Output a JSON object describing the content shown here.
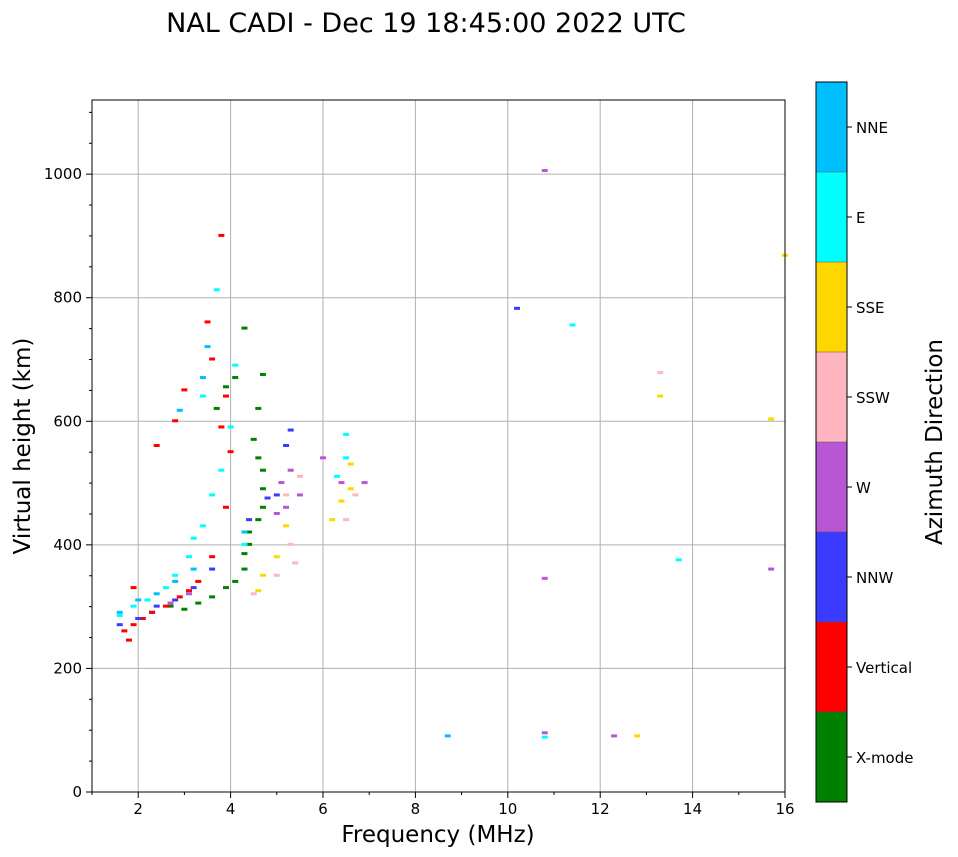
{
  "chart_data": {
    "type": "scatter",
    "title": "NAL CADI - Dec 19 18:45:00 2022 UTC",
    "xlabel": "Frequency (MHz)",
    "ylabel": "Virtual height (km)",
    "xlim": [
      1,
      16
    ],
    "ylim": [
      0,
      1120
    ],
    "xticks": [
      2,
      4,
      6,
      8,
      10,
      12,
      14,
      16
    ],
    "yticks": [
      0,
      200,
      400,
      600,
      800,
      1000
    ],
    "grid": true,
    "colorbar": {
      "label": "Azimuth Direction",
      "placement": "right",
      "categories": [
        {
          "name": "X-mode",
          "color": "#008000"
        },
        {
          "name": "Vertical",
          "color": "#ff0000"
        },
        {
          "name": "NNW",
          "color": "#3b3bff"
        },
        {
          "name": "W",
          "color": "#b857d6"
        },
        {
          "name": "SSW",
          "color": "#ffb6c1"
        },
        {
          "name": "SSE",
          "color": "#ffd700"
        },
        {
          "name": "E",
          "color": "#00ffff"
        },
        {
          "name": "NNE",
          "color": "#00bfff"
        }
      ]
    },
    "series": [
      {
        "name": "X-mode",
        "points": [
          [
            2.3,
            290
          ],
          [
            2.7,
            300
          ],
          [
            3.0,
            295
          ],
          [
            3.3,
            305
          ],
          [
            3.6,
            315
          ],
          [
            3.9,
            330
          ],
          [
            4.1,
            340
          ],
          [
            4.3,
            360
          ],
          [
            4.3,
            385
          ],
          [
            4.4,
            400
          ],
          [
            4.4,
            420
          ],
          [
            4.6,
            440
          ],
          [
            4.7,
            460
          ],
          [
            4.7,
            490
          ],
          [
            4.7,
            520
          ],
          [
            4.6,
            540
          ],
          [
            4.5,
            570
          ],
          [
            4.6,
            620
          ],
          [
            4.7,
            675
          ],
          [
            4.3,
            750
          ],
          [
            4.1,
            670
          ],
          [
            3.9,
            655
          ],
          [
            3.7,
            620
          ]
        ]
      },
      {
        "name": "Vertical",
        "points": [
          [
            1.7,
            260
          ],
          [
            1.9,
            270
          ],
          [
            2.1,
            280
          ],
          [
            2.3,
            290
          ],
          [
            2.6,
            300
          ],
          [
            2.9,
            315
          ],
          [
            3.1,
            325
          ],
          [
            3.3,
            340
          ],
          [
            3.6,
            380
          ],
          [
            3.9,
            460
          ],
          [
            4.0,
            550
          ],
          [
            3.8,
            590
          ],
          [
            3.9,
            640
          ],
          [
            3.6,
            700
          ],
          [
            3.5,
            760
          ],
          [
            3.8,
            900
          ],
          [
            2.4,
            560
          ],
          [
            2.8,
            600
          ],
          [
            3.0,
            650
          ],
          [
            1.8,
            245
          ],
          [
            1.9,
            330
          ]
        ]
      },
      {
        "name": "NNW",
        "points": [
          [
            1.6,
            270
          ],
          [
            2.0,
            280
          ],
          [
            2.4,
            300
          ],
          [
            2.8,
            310
          ],
          [
            3.2,
            330
          ],
          [
            3.6,
            360
          ],
          [
            4.4,
            440
          ],
          [
            4.8,
            475
          ],
          [
            5.2,
            560
          ],
          [
            5.3,
            585
          ],
          [
            5.0,
            480
          ],
          [
            10.2,
            782
          ]
        ]
      },
      {
        "name": "W",
        "points": [
          [
            2.7,
            305
          ],
          [
            3.1,
            320
          ],
          [
            5.0,
            450
          ],
          [
            5.1,
            500
          ],
          [
            5.3,
            520
          ],
          [
            5.5,
            480
          ],
          [
            5.2,
            460
          ],
          [
            6.0,
            540
          ],
          [
            6.4,
            500
          ],
          [
            6.9,
            500
          ],
          [
            10.8,
            345
          ],
          [
            10.8,
            95
          ],
          [
            10.8,
            1005
          ],
          [
            12.3,
            90
          ],
          [
            15.7,
            360
          ]
        ]
      },
      {
        "name": "SSW",
        "points": [
          [
            4.5,
            320
          ],
          [
            5.0,
            350
          ],
          [
            5.4,
            370
          ],
          [
            5.3,
            400
          ],
          [
            5.5,
            510
          ],
          [
            5.2,
            480
          ],
          [
            6.5,
            440
          ],
          [
            6.7,
            480
          ],
          [
            13.3,
            678
          ]
        ]
      },
      {
        "name": "SSE",
        "points": [
          [
            4.6,
            325
          ],
          [
            4.7,
            350
          ],
          [
            5.0,
            380
          ],
          [
            5.2,
            430
          ],
          [
            6.2,
            440
          ],
          [
            6.4,
            470
          ],
          [
            6.6,
            490
          ],
          [
            6.6,
            530
          ],
          [
            13.3,
            640
          ],
          [
            12.8,
            90
          ],
          [
            15.7,
            603
          ],
          [
            16.0,
            868
          ]
        ]
      },
      {
        "name": "E",
        "points": [
          [
            1.6,
            285
          ],
          [
            1.9,
            300
          ],
          [
            2.2,
            310
          ],
          [
            2.6,
            330
          ],
          [
            2.8,
            350
          ],
          [
            3.1,
            380
          ],
          [
            3.2,
            410
          ],
          [
            3.4,
            430
          ],
          [
            3.6,
            480
          ],
          [
            3.8,
            520
          ],
          [
            4.0,
            590
          ],
          [
            4.1,
            690
          ],
          [
            3.4,
            640
          ],
          [
            3.7,
            812
          ],
          [
            6.3,
            510
          ],
          [
            6.5,
            540
          ],
          [
            6.5,
            578
          ],
          [
            10.8,
            88
          ],
          [
            11.4,
            755
          ],
          [
            13.7,
            375
          ],
          [
            4.3,
            400
          ]
        ]
      },
      {
        "name": "NNE",
        "points": [
          [
            1.6,
            290
          ],
          [
            2.0,
            310
          ],
          [
            2.4,
            320
          ],
          [
            2.8,
            340
          ],
          [
            3.2,
            360
          ],
          [
            3.4,
            670
          ],
          [
            3.5,
            720
          ],
          [
            2.9,
            617
          ],
          [
            4.3,
            420
          ],
          [
            8.7,
            90
          ]
        ]
      }
    ]
  },
  "colors": {
    "grid": "#b0b0b0",
    "axis": "#000000"
  }
}
